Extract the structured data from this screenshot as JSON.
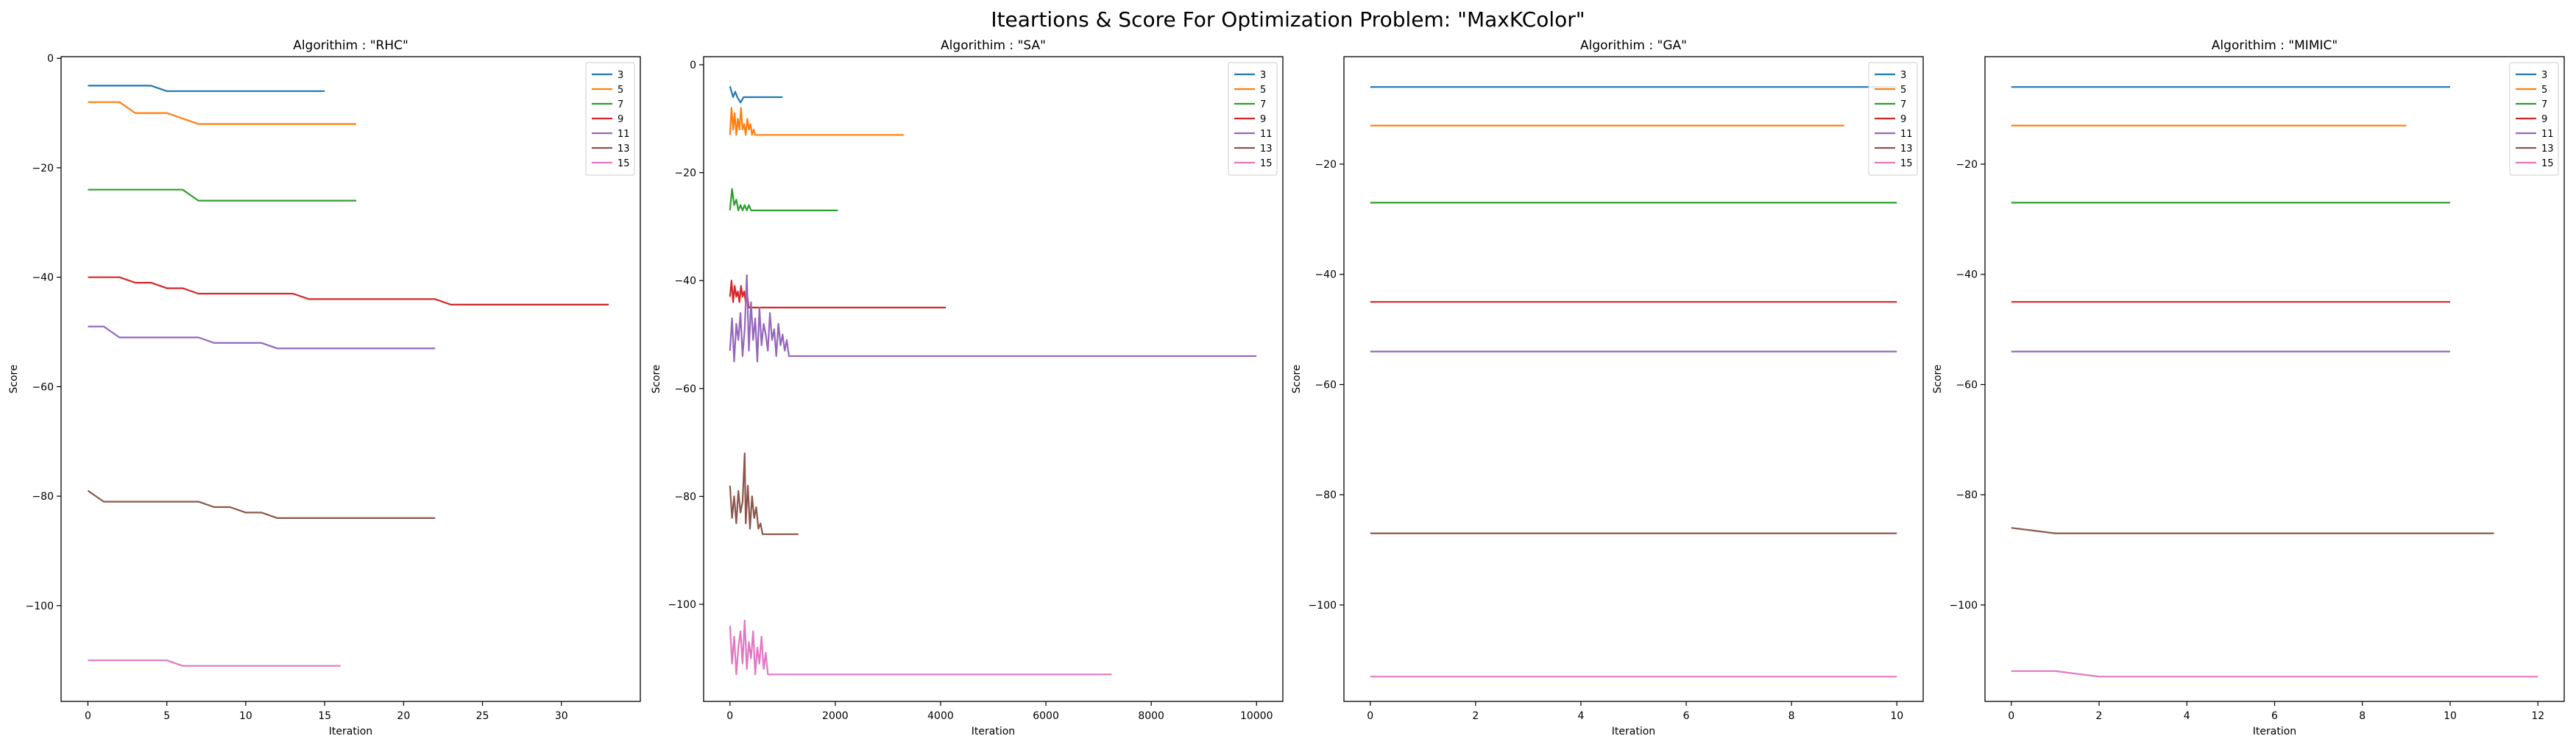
{
  "figure": {
    "title": "Iteartions & Score For Optimization Problem: \"MaxKColor\""
  },
  "series_colors": {
    "3": "#1f77b4",
    "5": "#ff7f0e",
    "7": "#2ca02c",
    "9": "#d62728",
    "11": "#9467bd",
    "13": "#8c564b",
    "15": "#e377c2"
  },
  "chart_data": [
    {
      "type": "line",
      "title": "Algorithim : \"RHC\"",
      "xlabel": "Iteration",
      "ylabel": "Score",
      "xlim": [
        -1.7,
        35
      ],
      "ylim": [
        -117.5,
        0.3
      ],
      "xticks": [
        0,
        5,
        10,
        15,
        20,
        25,
        30
      ],
      "yticks": [
        0,
        -20,
        -40,
        -60,
        -80,
        -100
      ],
      "legend": {
        "position": "top-right",
        "entries": [
          "3",
          "5",
          "7",
          "9",
          "11",
          "13",
          "15"
        ]
      },
      "series": [
        {
          "name": "3",
          "x": [
            0,
            4,
            5,
            15
          ],
          "y": [
            -5,
            -5,
            -6,
            -6
          ]
        },
        {
          "name": "5",
          "x": [
            0,
            2,
            3,
            5,
            7,
            17
          ],
          "y": [
            -8,
            -8,
            -10,
            -10,
            -12,
            -12
          ]
        },
        {
          "name": "7",
          "x": [
            0,
            6,
            7,
            17
          ],
          "y": [
            -24,
            -24,
            -26,
            -26
          ]
        },
        {
          "name": "9",
          "x": [
            0,
            2,
            3,
            4,
            5,
            6,
            7,
            13,
            14,
            22,
            23,
            33
          ],
          "y": [
            -40,
            -40,
            -41,
            -41,
            -42,
            -42,
            -43,
            -43,
            -44,
            -44,
            -45,
            -45
          ]
        },
        {
          "name": "11",
          "x": [
            0,
            1,
            2,
            7,
            8,
            11,
            12,
            22
          ],
          "y": [
            -49,
            -49,
            -51,
            -51,
            -52,
            -52,
            -53,
            -53
          ]
        },
        {
          "name": "13",
          "x": [
            0,
            1,
            7,
            8,
            9,
            10,
            11,
            12,
            22
          ],
          "y": [
            -79,
            -81,
            -81,
            -82,
            -82,
            -83,
            -83,
            -84,
            -84
          ]
        },
        {
          "name": "15",
          "x": [
            0,
            5,
            6,
            16
          ],
          "y": [
            -110,
            -110,
            -111,
            -111
          ]
        }
      ]
    },
    {
      "type": "line",
      "title": "Algorithim : \"SA\"",
      "xlabel": "Iteration",
      "ylabel": "Score",
      "xlim": [
        -500,
        10500
      ],
      "ylim": [
        -118,
        1.5
      ],
      "xticks": [
        0,
        2000,
        4000,
        6000,
        8000,
        10000
      ],
      "yticks": [
        0,
        -20,
        -40,
        -60,
        -80,
        -100
      ],
      "legend": {
        "position": "top-right",
        "entries": [
          "3",
          "5",
          "7",
          "9",
          "11",
          "13",
          "15"
        ]
      },
      "series": [
        {
          "name": "3",
          "x": [
            0,
            60,
            100,
            140,
            200,
            260,
            300,
            360,
            400,
            460,
            500,
            560,
            600,
            660,
            720,
            780,
            840,
            900,
            960,
            1000
          ],
          "y": [
            -4,
            -6,
            -5,
            -6,
            -7,
            -6,
            -6,
            -6,
            -6,
            -6,
            -6,
            -6,
            -6,
            -6,
            -6,
            -6,
            -6,
            -6,
            -6,
            -6
          ]
        },
        {
          "name": "5",
          "x": [
            0,
            30,
            60,
            90,
            120,
            150,
            180,
            210,
            240,
            270,
            300,
            330,
            360,
            390,
            420,
            450,
            480,
            510,
            3300
          ],
          "y": [
            -13,
            -8,
            -12,
            -9,
            -13,
            -10,
            -12,
            -8,
            -12,
            -11,
            -13,
            -10,
            -12,
            -11,
            -13,
            -12,
            -13,
            -13,
            -13
          ]
        },
        {
          "name": "7",
          "x": [
            0,
            40,
            80,
            120,
            160,
            200,
            240,
            280,
            320,
            360,
            400,
            440,
            2050
          ],
          "y": [
            -27,
            -23,
            -26,
            -25,
            -27,
            -26,
            -27,
            -26,
            -27,
            -26,
            -27,
            -27,
            -27
          ]
        },
        {
          "name": "9",
          "x": [
            0,
            30,
            60,
            90,
            120,
            150,
            180,
            210,
            240,
            270,
            300,
            330,
            360,
            400,
            4100
          ],
          "y": [
            -43,
            -40,
            -44,
            -41,
            -43,
            -42,
            -44,
            -41,
            -43,
            -42,
            -44,
            -43,
            -45,
            -45,
            -45
          ]
        },
        {
          "name": "11",
          "x": [
            0,
            40,
            80,
            120,
            160,
            200,
            240,
            280,
            320,
            360,
            400,
            440,
            480,
            520,
            560,
            600,
            640,
            680,
            720,
            760,
            800,
            840,
            880,
            920,
            960,
            1000,
            1040,
            1080,
            1120,
            1160,
            10000
          ],
          "y": [
            -53,
            -47,
            -55,
            -48,
            -51,
            -46,
            -54,
            -49,
            -39,
            -53,
            -44,
            -51,
            -47,
            -55,
            -45,
            -52,
            -48,
            -50,
            -53,
            -46,
            -51,
            -49,
            -54,
            -48,
            -52,
            -50,
            -53,
            -51,
            -54,
            -54,
            -54
          ]
        },
        {
          "name": "13",
          "x": [
            0,
            40,
            80,
            120,
            160,
            200,
            240,
            280,
            300,
            340,
            380,
            420,
            460,
            500,
            540,
            580,
            620,
            660,
            1300
          ],
          "y": [
            -78,
            -84,
            -80,
            -85,
            -79,
            -83,
            -81,
            -72,
            -85,
            -78,
            -86,
            -80,
            -84,
            -82,
            -86,
            -85,
            -87,
            -87,
            -87
          ]
        },
        {
          "name": "15",
          "x": [
            0,
            40,
            80,
            120,
            160,
            200,
            240,
            280,
            320,
            360,
            400,
            440,
            480,
            520,
            560,
            600,
            640,
            680,
            720,
            760,
            800,
            7250
          ],
          "y": [
            -104,
            -111,
            -106,
            -113,
            -108,
            -105,
            -111,
            -103,
            -112,
            -107,
            -110,
            -105,
            -113,
            -108,
            -111,
            -106,
            -112,
            -109,
            -113,
            -113,
            -113,
            -113
          ]
        }
      ]
    },
    {
      "type": "line",
      "title": "Algorithim : \"GA\"",
      "xlabel": "Iteration",
      "ylabel": "Score",
      "xlim": [
        -0.5,
        10.5
      ],
      "ylim": [
        -117.5,
        -0.5
      ],
      "xticks": [
        0,
        2,
        4,
        6,
        8,
        10
      ],
      "yticks": [
        -20,
        -40,
        -60,
        -80,
        -100
      ],
      "legend": {
        "position": "top-right",
        "entries": [
          "3",
          "5",
          "7",
          "9",
          "11",
          "13",
          "15"
        ]
      },
      "series": [
        {
          "name": "3",
          "x": [
            0,
            10
          ],
          "y": [
            -6,
            -6
          ]
        },
        {
          "name": "5",
          "x": [
            0,
            9
          ],
          "y": [
            -13,
            -13
          ]
        },
        {
          "name": "7",
          "x": [
            0,
            10
          ],
          "y": [
            -27,
            -27
          ]
        },
        {
          "name": "9",
          "x": [
            0,
            10
          ],
          "y": [
            -45,
            -45
          ]
        },
        {
          "name": "11",
          "x": [
            0,
            10
          ],
          "y": [
            -54,
            -54
          ]
        },
        {
          "name": "13",
          "x": [
            0,
            10
          ],
          "y": [
            -87,
            -87
          ]
        },
        {
          "name": "15",
          "x": [
            0,
            10
          ],
          "y": [
            -113,
            -113
          ]
        }
      ]
    },
    {
      "type": "line",
      "title": "Algorithim : \"MIMIC\"",
      "xlabel": "Iteration",
      "ylabel": "Score",
      "xlim": [
        -0.6,
        12.6
      ],
      "ylim": [
        -117.5,
        -0.5
      ],
      "xticks": [
        0,
        2,
        4,
        6,
        8,
        10,
        12
      ],
      "yticks": [
        -20,
        -40,
        -60,
        -80,
        -100
      ],
      "legend": {
        "position": "top-right",
        "entries": [
          "3",
          "5",
          "7",
          "9",
          "11",
          "13",
          "15"
        ]
      },
      "series": [
        {
          "name": "3",
          "x": [
            0,
            10
          ],
          "y": [
            -6,
            -6
          ]
        },
        {
          "name": "5",
          "x": [
            0,
            9
          ],
          "y": [
            -13,
            -13
          ]
        },
        {
          "name": "7",
          "x": [
            0,
            10
          ],
          "y": [
            -27,
            -27
          ]
        },
        {
          "name": "9",
          "x": [
            0,
            10
          ],
          "y": [
            -45,
            -45
          ]
        },
        {
          "name": "11",
          "x": [
            0,
            10
          ],
          "y": [
            -54,
            -54
          ]
        },
        {
          "name": "13",
          "x": [
            0,
            1,
            11
          ],
          "y": [
            -86,
            -87,
            -87
          ]
        },
        {
          "name": "15",
          "x": [
            0,
            1,
            2,
            12
          ],
          "y": [
            -112,
            -112,
            -113,
            -113
          ]
        }
      ]
    }
  ]
}
